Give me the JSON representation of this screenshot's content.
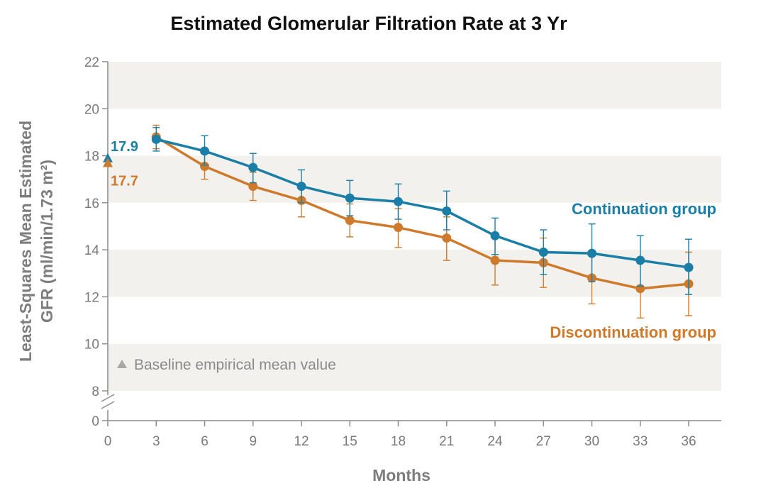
{
  "colors": {
    "continuation": "#1b7ea6",
    "discontinuation": "#cf7a2b",
    "axis": "#8c8c8c",
    "band": "#f3f1ee",
    "note_marker": "#a8a8a8"
  },
  "chart_data": {
    "type": "line",
    "title": "Estimated Glomerular Filtration Rate at 3 Yr",
    "xlabel": "Months",
    "ylabel": "Least-Squares Mean Estimated GFR (ml/min/1.73 m²)",
    "ylabel_lines": [
      "Least-Squares Mean Estimated",
      "GFR (ml/min/1.73 m²)"
    ],
    "x_ticks": [
      0,
      3,
      6,
      9,
      12,
      15,
      18,
      21,
      24,
      27,
      30,
      33,
      36
    ],
    "y_ticks": [
      0,
      8,
      10,
      12,
      14,
      16,
      18,
      20,
      22
    ],
    "ylim": [
      8,
      22
    ],
    "y_axis_break": true,
    "grid": "alternating horizontal bands",
    "series": [
      {
        "name": "Continuation group",
        "color": "#1b7ea6",
        "baseline": 17.9,
        "baseline_label": "17.9",
        "x": [
          3,
          6,
          9,
          12,
          15,
          18,
          21,
          24,
          27,
          30,
          33,
          36
        ],
        "y": [
          18.7,
          18.2,
          17.5,
          16.7,
          16.2,
          16.05,
          15.65,
          14.6,
          13.9,
          13.85,
          13.55,
          13.25
        ],
        "err_low": [
          18.2,
          17.6,
          16.85,
          16.0,
          15.45,
          15.3,
          14.85,
          13.8,
          12.95,
          12.65,
          12.45,
          12.1
        ],
        "err_high": [
          19.2,
          18.85,
          18.1,
          17.4,
          16.95,
          16.8,
          16.5,
          15.35,
          14.85,
          15.1,
          14.6,
          14.45
        ]
      },
      {
        "name": "Discontinuation group",
        "color": "#cf7a2b",
        "baseline": 17.7,
        "baseline_label": "17.7",
        "x": [
          3,
          6,
          9,
          12,
          15,
          18,
          21,
          24,
          27,
          30,
          33,
          36
        ],
        "y": [
          18.8,
          17.55,
          16.7,
          16.1,
          15.25,
          14.95,
          14.5,
          13.55,
          13.45,
          12.8,
          12.35,
          12.55
        ],
        "err_low": [
          18.3,
          17.0,
          16.1,
          15.4,
          14.55,
          14.1,
          13.55,
          12.5,
          12.4,
          11.7,
          11.1,
          11.2
        ],
        "err_high": [
          19.3,
          18.15,
          17.3,
          16.8,
          15.95,
          15.75,
          15.4,
          14.6,
          14.5,
          13.9,
          13.55,
          13.9
        ]
      }
    ],
    "annotations": {
      "baseline_note": "Baseline empirical mean value"
    }
  }
}
